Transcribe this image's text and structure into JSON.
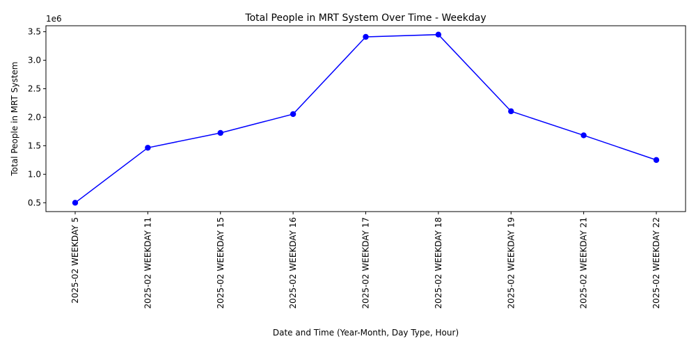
{
  "chart_data": {
    "type": "line",
    "title": "Total People in MRT System Over Time - Weekday",
    "xlabel": "Date and Time (Year-Month, Day Type, Hour)",
    "ylabel": "Total People in MRT System",
    "y_offset_label": "1e6",
    "categories": [
      "2025-02 WEEKDAY 5",
      "2025-02 WEEKDAY 11",
      "2025-02 WEEKDAY 15",
      "2025-02 WEEKDAY 16",
      "2025-02 WEEKDAY 17",
      "2025-02 WEEKDAY 18",
      "2025-02 WEEKDAY 19",
      "2025-02 WEEKDAY 21",
      "2025-02 WEEKDAY 22"
    ],
    "values": [
      500000,
      1465000,
      1725000,
      2055000,
      3410000,
      3450000,
      2105000,
      1683000,
      1250000
    ],
    "ylim": [
      345000,
      3605000
    ],
    "yticks": [
      0.5,
      1.0,
      1.5,
      2.0,
      2.5,
      3.0,
      3.5
    ],
    "ytick_labels": [
      "0.5",
      "1.0",
      "1.5",
      "2.0",
      "2.5",
      "3.0",
      "3.5"
    ],
    "grid": false,
    "line_color": "#0000ff",
    "marker": "circle"
  }
}
